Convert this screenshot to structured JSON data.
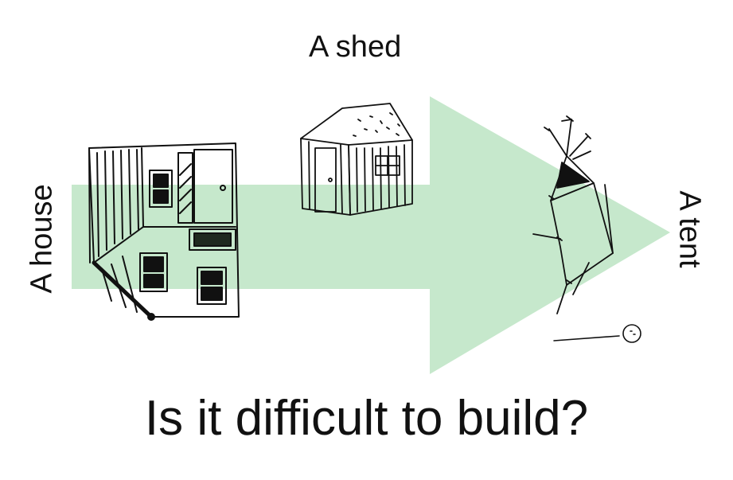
{
  "labels": {
    "house": "A house",
    "shed": "A shed",
    "tent": "A tent",
    "question": "Is it difficult to build?"
  },
  "colors": {
    "arrow": "#c6e8cc",
    "ink": "#111111",
    "background": "#ffffff"
  },
  "icons": [
    "house-drawing-icon",
    "shed-drawing-icon",
    "tent-drawing-icon",
    "stick-figure-icon"
  ]
}
